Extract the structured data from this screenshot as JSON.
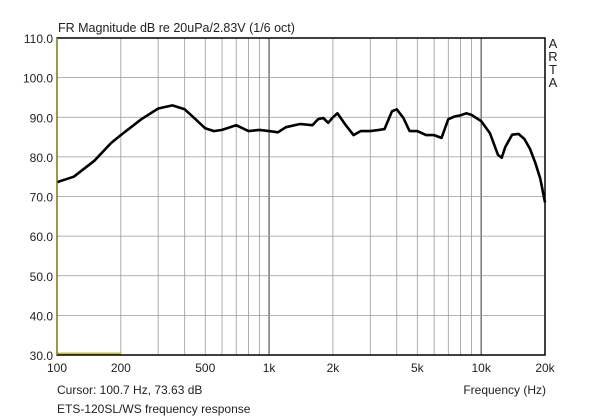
{
  "chart_data": {
    "type": "line",
    "title": "FR Magnitude dB re 20uPa/2.83V (1/6 oct)",
    "xlabel": "Frequency (Hz)",
    "ylabel": "",
    "x_scale": "log",
    "xlim": [
      100,
      20000
    ],
    "ylim": [
      30,
      110
    ],
    "grid": true,
    "x_ticks": [
      100,
      200,
      500,
      1000,
      2000,
      5000,
      10000,
      20000
    ],
    "x_tick_labels": [
      "100",
      "200",
      "500",
      "1k",
      "2k",
      "5k",
      "10k",
      "20k"
    ],
    "y_ticks": [
      30,
      40,
      50,
      60,
      70,
      80,
      90,
      100,
      110
    ],
    "y_tick_labels": [
      "30.0",
      "40.0",
      "50.0",
      "60.0",
      "70.0",
      "80.0",
      "90.0",
      "100.0",
      "110.0"
    ],
    "series": [
      {
        "color": "#000000",
        "x": [
          100,
          120,
          150,
          180,
          200,
          250,
          300,
          350,
          400,
          450,
          500,
          550,
          600,
          700,
          800,
          900,
          1000,
          1100,
          1200,
          1400,
          1600,
          1700,
          1800,
          1900,
          2000,
          2100,
          2300,
          2500,
          2700,
          3000,
          3300,
          3500,
          3800,
          4000,
          4300,
          4600,
          5000,
          5500,
          6000,
          6500,
          7000,
          7500,
          8000,
          8500,
          9000,
          10000,
          11000,
          12000,
          12500,
          13000,
          14000,
          15000,
          16000,
          17000,
          18000,
          19000,
          20000
        ],
        "y": [
          73.6,
          75.0,
          79.0,
          83.5,
          85.5,
          89.5,
          92.2,
          93.0,
          92.0,
          89.5,
          87.2,
          86.5,
          86.8,
          88.0,
          86.5,
          86.8,
          86.5,
          86.2,
          87.5,
          88.3,
          88.0,
          89.5,
          89.8,
          88.6,
          90.0,
          91.0,
          88.0,
          85.5,
          86.5,
          86.5,
          86.8,
          87.0,
          91.5,
          92.0,
          89.8,
          86.5,
          86.5,
          85.5,
          85.5,
          84.8,
          89.5,
          90.2,
          90.5,
          91.0,
          90.6,
          89.0,
          86.0,
          80.5,
          79.8,
          82.5,
          85.6,
          85.8,
          84.5,
          82.0,
          78.5,
          74.5,
          68.5
        ]
      }
    ],
    "marker": {
      "from_hz": 100,
      "to_hz": 200,
      "db": 30.5,
      "color": "#c8c020"
    },
    "cursor_readout": "Cursor: 100.7 Hz, 73.63 dB",
    "caption": "ETS-120SL/WS frequency response",
    "logo": "ARTA"
  }
}
